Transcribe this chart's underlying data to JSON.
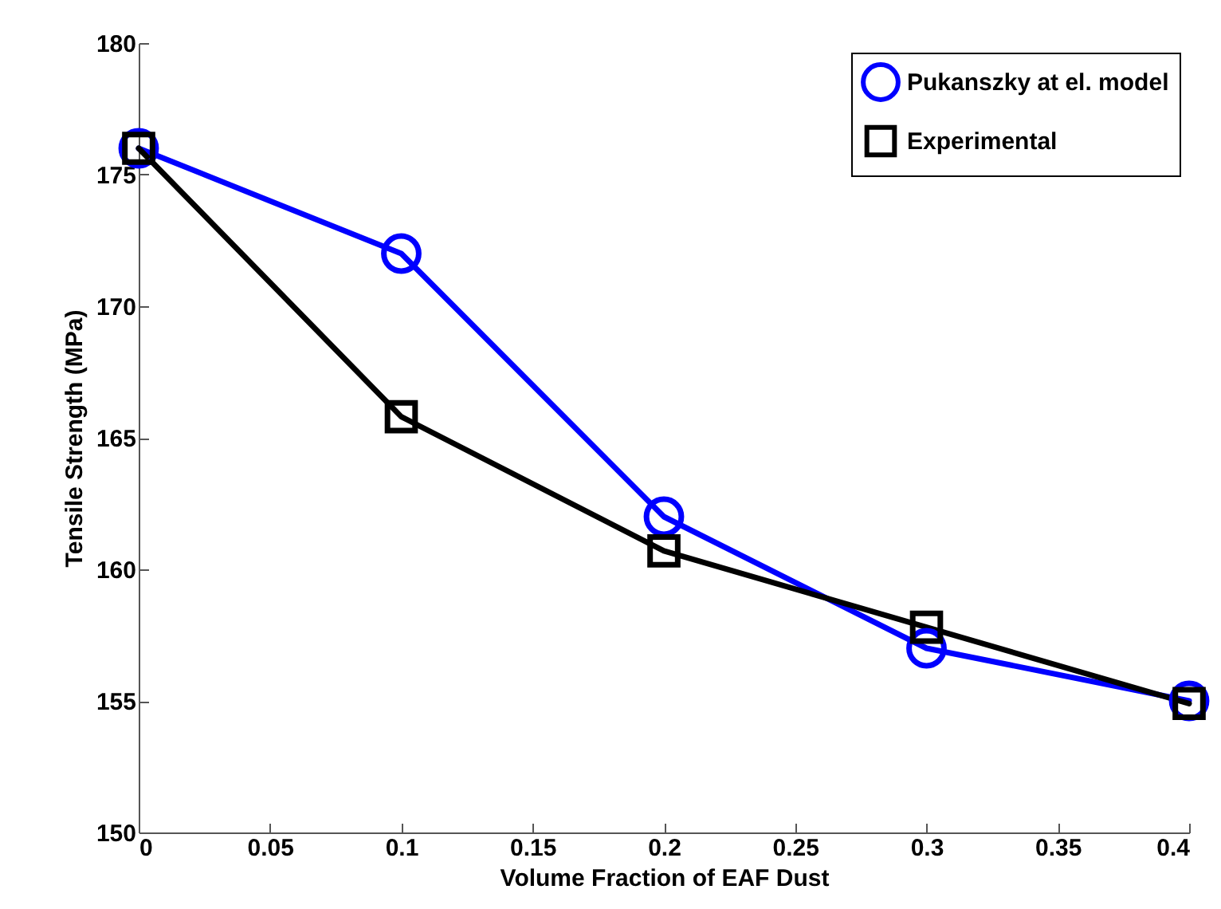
{
  "chart_data": {
    "type": "line",
    "xlabel": "Volume Fraction of EAF Dust",
    "ylabel": "Tensile Strength (MPa)",
    "x": [
      0,
      0.1,
      0.2,
      0.3,
      0.4
    ],
    "series": [
      {
        "name": "Pukanszky at el. model",
        "color": "#0000ff",
        "marker": "circle",
        "values": [
          176,
          172,
          162,
          157,
          155
        ]
      },
      {
        "name": "Experimental",
        "color": "#000000",
        "marker": "square",
        "values": [
          176,
          165.8,
          160.7,
          157.8,
          154.9
        ]
      }
    ],
    "xlim": [
      0,
      0.4
    ],
    "xticks": [
      0,
      0.05,
      0.1,
      0.15,
      0.2,
      0.25,
      0.3,
      0.35,
      0.4
    ],
    "ylim": [
      150,
      180
    ],
    "yticks": [
      150,
      155,
      160,
      165,
      170,
      175,
      180
    ],
    "grid": false,
    "legend": "top right",
    "line_style": "solid"
  }
}
